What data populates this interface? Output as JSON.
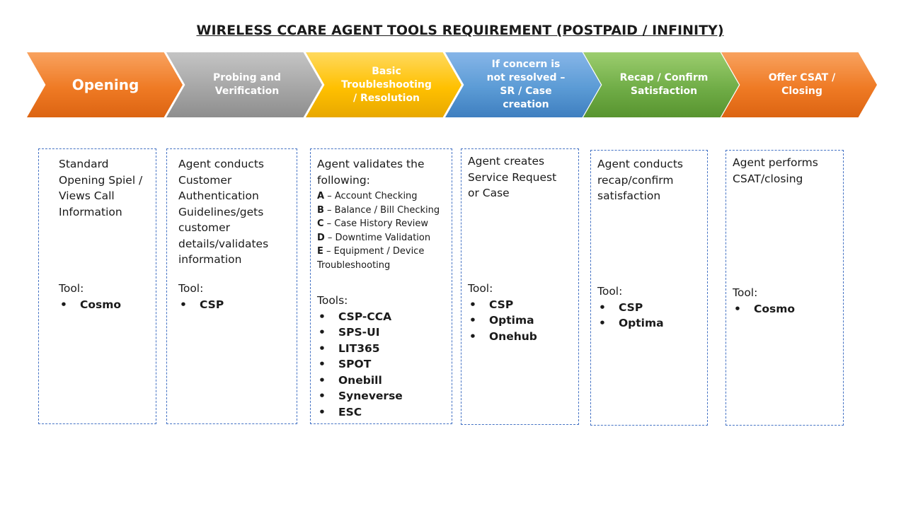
{
  "title": "WIRELESS CCARE AGENT TOOLS REQUIREMENT (POSTPAID / INFINITY)",
  "steps": [
    {
      "label": "Opening",
      "color": "#ef7a24"
    },
    {
      "label": "Probing and Verification",
      "color": "#a6a6a6"
    },
    {
      "label": "Basic Troubleshooting / Resolution",
      "color": "#ffc000"
    },
    {
      "label": "If concern is not resolved – SR / Case creation",
      "color": "#5b9bd5"
    },
    {
      "label": "Recap / Confirm Satisfaction",
      "color": "#70ad47"
    },
    {
      "label": "Offer CSAT / Closing",
      "color": "#ef7a24"
    }
  ],
  "boxes": [
    {
      "description": "Standard Opening Spiel / Views Call Information",
      "tools_label": "Tool:",
      "tools": [
        "Cosmo"
      ]
    },
    {
      "description": "Agent conducts Customer Authentication Guidelines/gets customer details/validates information",
      "tools_label": "Tool:",
      "tools": [
        "CSP"
      ]
    },
    {
      "description": "Agent validates the following:",
      "items": [
        {
          "letter": "A",
          "text": " – Account  Checking"
        },
        {
          "letter": "B",
          "text": " – Balance / Bill Checking"
        },
        {
          "letter": "C",
          "text": " – Case History Review"
        },
        {
          "letter": "D",
          "text": " – Downtime  Validation"
        },
        {
          "letter": "E",
          "text": " – Equipment  / Device Troubleshooting"
        }
      ],
      "tools_label": "Tools:",
      "tools": [
        "CSP-CCA",
        "SPS-UI",
        "LIT365",
        "SPOT",
        "Onebill",
        "Syneverse",
        "ESC"
      ]
    },
    {
      "description": "Agent creates Service Request or Case",
      "tools_label": "Tool:",
      "tools": [
        "CSP",
        "Optima",
        "Onehub"
      ]
    },
    {
      "description": "Agent conducts recap/confirm satisfaction",
      "tools_label": "Tool:",
      "tools": [
        "CSP",
        "Optima"
      ]
    },
    {
      "description": "Agent performs CSAT/closing",
      "tools_label": "Tool:",
      "tools": [
        "Cosmo"
      ]
    }
  ]
}
